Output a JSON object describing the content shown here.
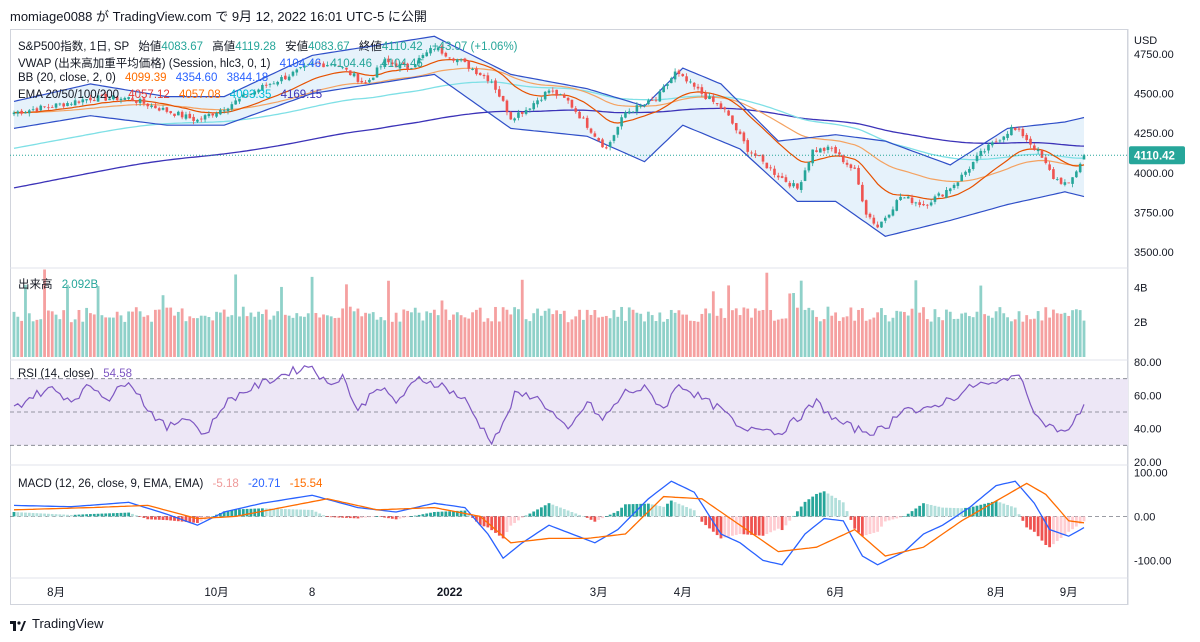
{
  "header": {
    "text": "momiage0088 が TradingView.com で 9月 12, 2022 16:01 UTC-5 に公開"
  },
  "footer": {
    "brand": "TradingView"
  },
  "legend": {
    "main": {
      "name": "S&P500指数, 1日, SP",
      "o_label": "始値",
      "o": "4083.67",
      "h_label": "高値",
      "h": "4119.28",
      "l_label": "安値",
      "l": "4083.67",
      "c_label": "終値",
      "c": "4110.42",
      "change": "+43.07 (+1.06%)"
    },
    "vwap": {
      "name": "VWAP (出来高加重平均価格) (Session, hlc3, 0, 1)",
      "v1": "4104.46",
      "v2": "4104.46",
      "v3": "4104.46"
    },
    "bb": {
      "name": "BB (20, close, 2, 0)",
      "basis": "4099.39",
      "upper": "4354.60",
      "lower": "3844.18"
    },
    "ema": {
      "name": "EMA 20/50/100/200",
      "e20": "4057.12",
      "e50": "4057.08",
      "e100": "4093.35",
      "e200": "4169.15"
    },
    "volume": {
      "name": "出来高",
      "value": "2.092B"
    },
    "rsi": {
      "name": "RSI (14, close)",
      "value": "54.58"
    },
    "macd": {
      "name": "MACD (12, 26, close, 9, EMA, EMA)",
      "hist": "-5.18",
      "macd": "-20.71",
      "signal": "-15.54"
    }
  },
  "colors": {
    "up": "#26a69a",
    "down": "#ef5350",
    "vol_up": "#8fd1c9",
    "vol_down": "#f5a0a0",
    "bb": "#2f4fc8",
    "bb_fill": "#e3f1fb",
    "ema20": "#e65100",
    "ema50": "#f4a261",
    "ema100": "#7fe0e6",
    "ema200": "#3c33b8",
    "rsi_line": "#7e57c2",
    "rsi_band": "#ede7f6",
    "macd_line": "#2962ff",
    "signal_line": "#ff6d00",
    "hist_up": "#26a69a",
    "hist_down": "#ef5350",
    "hist_up_light": "#b2dfdb",
    "hist_down_light": "#ffcdd2",
    "vwap": "#2962ff"
  },
  "chart_data": {
    "type": "candlestick",
    "symbol": "S&P500指数",
    "interval": "1日",
    "y_unit": "USD",
    "price_ticks": [
      "4750.00",
      "4500.00",
      "4250.00",
      "4000.00",
      "3750.00",
      "3500.00"
    ],
    "price_range": [
      3400,
      4900
    ],
    "last_price": "4110.42",
    "x_labels": [
      {
        "label": "8月",
        "index": 11
      },
      {
        "label": "10月",
        "index": 53
      },
      {
        "label": "8",
        "index": 78
      },
      {
        "label": "2022",
        "index": 114,
        "bold": true
      },
      {
        "label": "3月",
        "index": 153
      },
      {
        "label": "4月",
        "index": 175
      },
      {
        "label": "6月",
        "index": 215
      },
      {
        "label": "8月",
        "index": 257
      },
      {
        "label": "9月",
        "index": 276
      }
    ],
    "close_anchors": [
      [
        0,
        4380
      ],
      [
        10,
        4420
      ],
      [
        20,
        4470
      ],
      [
        30,
        4470
      ],
      [
        40,
        4390
      ],
      [
        48,
        4330
      ],
      [
        55,
        4410
      ],
      [
        65,
        4540
      ],
      [
        78,
        4680
      ],
      [
        84,
        4690
      ],
      [
        92,
        4560
      ],
      [
        97,
        4700
      ],
      [
        103,
        4660
      ],
      [
        110,
        4790
      ],
      [
        117,
        4700
      ],
      [
        125,
        4580
      ],
      [
        130,
        4350
      ],
      [
        134,
        4400
      ],
      [
        140,
        4520
      ],
      [
        145,
        4450
      ],
      [
        150,
        4300
      ],
      [
        155,
        4150
      ],
      [
        160,
        4380
      ],
      [
        168,
        4460
      ],
      [
        173,
        4630
      ],
      [
        180,
        4500
      ],
      [
        186,
        4390
      ],
      [
        192,
        4150
      ],
      [
        199,
        4000
      ],
      [
        205,
        3900
      ],
      [
        209,
        4140
      ],
      [
        214,
        4150
      ],
      [
        220,
        4010
      ],
      [
        223,
        3750
      ],
      [
        226,
        3660
      ],
      [
        232,
        3850
      ],
      [
        238,
        3800
      ],
      [
        243,
        3870
      ],
      [
        247,
        3950
      ],
      [
        253,
        4120
      ],
      [
        261,
        4280
      ],
      [
        264,
        4240
      ],
      [
        268,
        4130
      ],
      [
        272,
        3970
      ],
      [
        276,
        3920
      ],
      [
        280,
        4110.42
      ]
    ],
    "bb_upper_anchors": [
      [
        0,
        4450
      ],
      [
        20,
        4560
      ],
      [
        40,
        4480
      ],
      [
        55,
        4480
      ],
      [
        78,
        4740
      ],
      [
        110,
        4860
      ],
      [
        130,
        4620
      ],
      [
        150,
        4530
      ],
      [
        165,
        4420
      ],
      [
        175,
        4660
      ],
      [
        185,
        4560
      ],
      [
        200,
        4200
      ],
      [
        215,
        4240
      ],
      [
        228,
        4200
      ],
      [
        245,
        4050
      ],
      [
        260,
        4280
      ],
      [
        275,
        4320
      ],
      [
        281,
        4354.6
      ]
    ],
    "bb_lower_anchors": [
      [
        0,
        4280
      ],
      [
        20,
        4360
      ],
      [
        40,
        4300
      ],
      [
        55,
        4300
      ],
      [
        78,
        4500
      ],
      [
        110,
        4620
      ],
      [
        130,
        4280
      ],
      [
        150,
        4230
      ],
      [
        165,
        4070
      ],
      [
        175,
        4300
      ],
      [
        190,
        4150
      ],
      [
        205,
        3820
      ],
      [
        215,
        3820
      ],
      [
        228,
        3600
      ],
      [
        245,
        3700
      ],
      [
        260,
        3800
      ],
      [
        275,
        3880
      ],
      [
        281,
        3844.18
      ]
    ],
    "volume_ticks": [
      "4B",
      "2B"
    ],
    "volume_range_B": [
      0,
      5
    ],
    "last_volume": "2.092B",
    "rsi_ticks": [
      "80.00",
      "60.00",
      "40.00",
      "20.00"
    ],
    "rsi_range": [
      20,
      80
    ],
    "rsi_band": [
      30,
      70
    ],
    "rsi_anchors": [
      [
        0,
        52
      ],
      [
        5,
        60
      ],
      [
        10,
        64
      ],
      [
        15,
        57
      ],
      [
        20,
        66
      ],
      [
        25,
        58
      ],
      [
        30,
        70
      ],
      [
        35,
        52
      ],
      [
        40,
        40
      ],
      [
        45,
        48
      ],
      [
        50,
        36
      ],
      [
        55,
        55
      ],
      [
        60,
        62
      ],
      [
        65,
        67
      ],
      [
        72,
        74
      ],
      [
        78,
        78
      ],
      [
        82,
        66
      ],
      [
        86,
        72
      ],
      [
        90,
        50
      ],
      [
        95,
        66
      ],
      [
        100,
        56
      ],
      [
        106,
        70
      ],
      [
        112,
        66
      ],
      [
        118,
        57
      ],
      [
        122,
        42
      ],
      [
        125,
        33
      ],
      [
        128,
        42
      ],
      [
        131,
        60
      ],
      [
        136,
        60
      ],
      [
        140,
        52
      ],
      [
        145,
        38
      ],
      [
        150,
        56
      ],
      [
        154,
        45
      ],
      [
        160,
        62
      ],
      [
        165,
        64
      ],
      [
        170,
        52
      ],
      [
        174,
        67
      ],
      [
        180,
        58
      ],
      [
        186,
        50
      ],
      [
        190,
        39
      ],
      [
        195,
        42
      ],
      [
        200,
        37
      ],
      [
        205,
        46
      ],
      [
        210,
        56
      ],
      [
        215,
        45
      ],
      [
        220,
        40
      ],
      [
        224,
        38
      ],
      [
        228,
        40
      ],
      [
        233,
        54
      ],
      [
        237,
        49
      ],
      [
        242,
        55
      ],
      [
        247,
        60
      ],
      [
        252,
        67
      ],
      [
        257,
        66
      ],
      [
        261,
        73
      ],
      [
        264,
        68
      ],
      [
        268,
        46
      ],
      [
        272,
        40
      ],
      [
        276,
        38
      ],
      [
        280,
        54.58
      ]
    ],
    "macd_ticks": [
      "100.00",
      "0.00",
      "-100.00"
    ],
    "macd_range": [
      -140,
      110
    ],
    "macd_anchors": [
      [
        0,
        25
      ],
      [
        15,
        22
      ],
      [
        30,
        32
      ],
      [
        40,
        5
      ],
      [
        48,
        -20
      ],
      [
        55,
        10
      ],
      [
        65,
        30
      ],
      [
        78,
        48
      ],
      [
        90,
        20
      ],
      [
        100,
        10
      ],
      [
        110,
        30
      ],
      [
        118,
        20
      ],
      [
        124,
        -40
      ],
      [
        128,
        -95
      ],
      [
        133,
        -60
      ],
      [
        140,
        -20
      ],
      [
        146,
        -40
      ],
      [
        152,
        -60
      ],
      [
        158,
        -30
      ],
      [
        166,
        40
      ],
      [
        172,
        80
      ],
      [
        178,
        55
      ],
      [
        185,
        -40
      ],
      [
        190,
        -60
      ],
      [
        196,
        -100
      ],
      [
        201,
        -110
      ],
      [
        207,
        -40
      ],
      [
        212,
        -5
      ],
      [
        217,
        -10
      ],
      [
        222,
        -90
      ],
      [
        226,
        -110
      ],
      [
        233,
        -80
      ],
      [
        238,
        -40
      ],
      [
        243,
        -20
      ],
      [
        250,
        20
      ],
      [
        257,
        70
      ],
      [
        262,
        80
      ],
      [
        267,
        30
      ],
      [
        271,
        -30
      ],
      [
        276,
        -45
      ],
      [
        281,
        -20.71
      ]
    ],
    "signal_anchors": [
      [
        0,
        15
      ],
      [
        20,
        20
      ],
      [
        35,
        25
      ],
      [
        48,
        -5
      ],
      [
        58,
        0
      ],
      [
        70,
        20
      ],
      [
        82,
        40
      ],
      [
        95,
        15
      ],
      [
        110,
        20
      ],
      [
        122,
        0
      ],
      [
        130,
        -60
      ],
      [
        140,
        -50
      ],
      [
        150,
        -50
      ],
      [
        160,
        -40
      ],
      [
        170,
        45
      ],
      [
        180,
        40
      ],
      [
        190,
        -20
      ],
      [
        200,
        -80
      ],
      [
        210,
        -70
      ],
      [
        220,
        -30
      ],
      [
        228,
        -90
      ],
      [
        238,
        -70
      ],
      [
        248,
        -10
      ],
      [
        258,
        40
      ],
      [
        265,
        75
      ],
      [
        270,
        50
      ],
      [
        276,
        -10
      ],
      [
        281,
        -15.54
      ]
    ]
  }
}
